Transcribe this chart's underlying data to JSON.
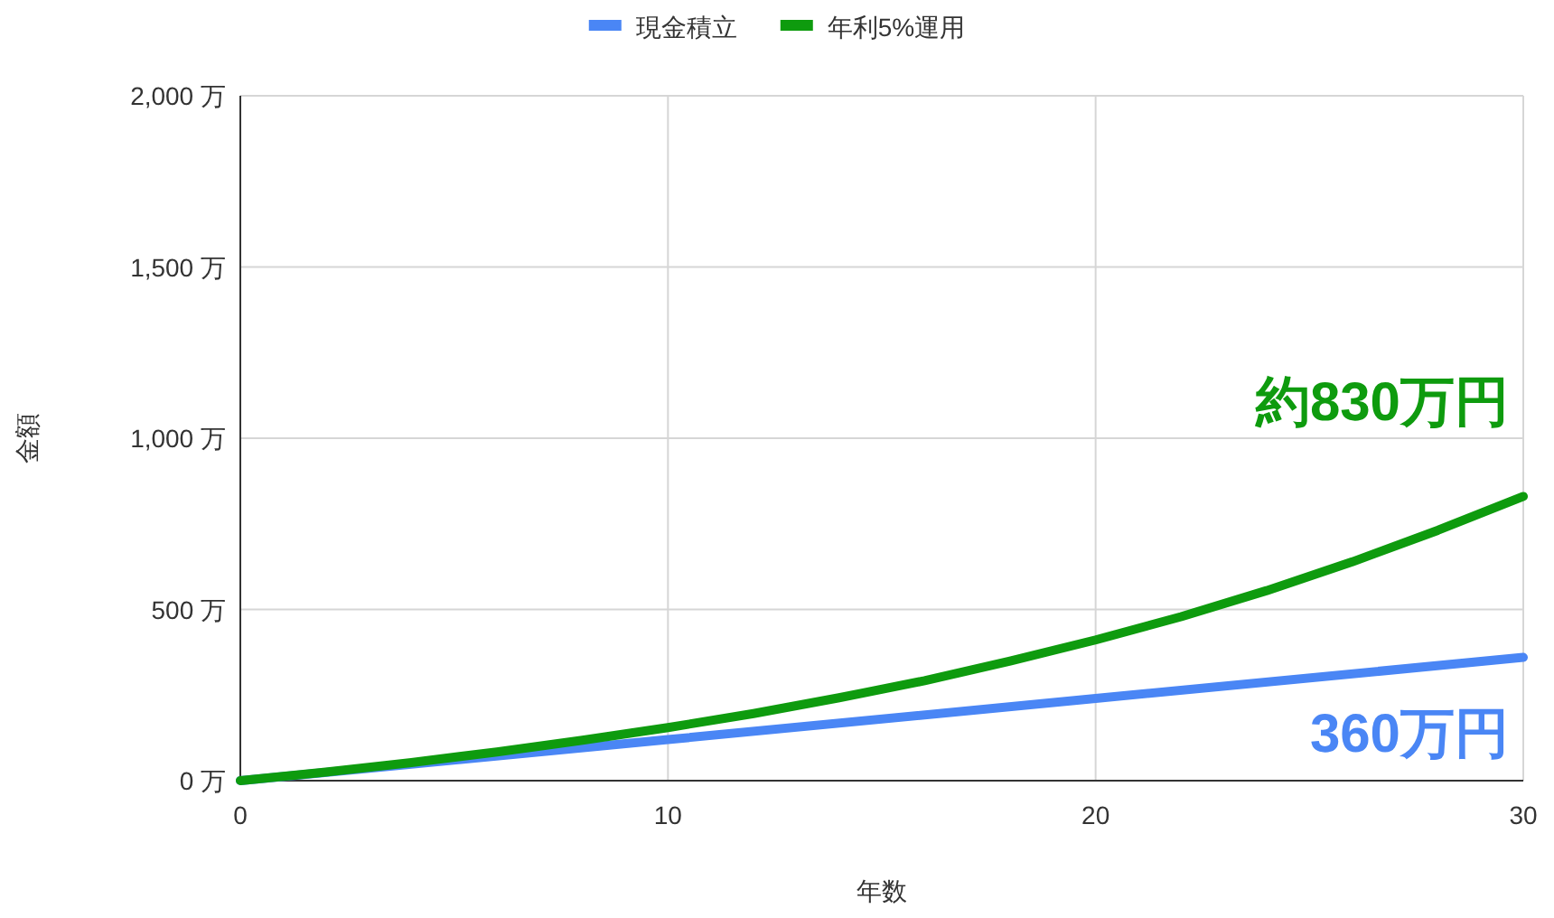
{
  "chart_data": {
    "type": "line",
    "xlabel": "年数",
    "ylabel": "金額",
    "xlim": [
      0,
      30
    ],
    "xticks": [
      0,
      10,
      20,
      30
    ],
    "ylim": [
      0,
      2000
    ],
    "yticks": [
      {
        "value": 0,
        "label": "0 万"
      },
      {
        "value": 500,
        "label": "500 万"
      },
      {
        "value": 1000,
        "label": "1,000 万"
      },
      {
        "value": 1500,
        "label": "1,500 万"
      },
      {
        "value": 2000,
        "label": "2,000 万"
      }
    ],
    "grid": true,
    "legend": "top",
    "marker": "none",
    "line_style": "solid",
    "series": [
      {
        "name": "現金積立",
        "color": "#4a86f5",
        "x": [
          0,
          10,
          20,
          30
        ],
        "values": [
          0,
          120,
          240,
          360
        ]
      },
      {
        "name": "年利5%運用",
        "color": "#0e9b0e",
        "x": [
          0,
          2,
          4,
          6,
          8,
          10,
          12,
          14,
          16,
          18,
          20,
          22,
          24,
          26,
          28,
          30
        ],
        "values": [
          0,
          25,
          53,
          84,
          118,
          155,
          196,
          242,
          292,
          349,
          411,
          479,
          555,
          639,
          731,
          830
        ]
      }
    ],
    "annotations": [
      {
        "text": "約830万円",
        "x": 30,
        "y": 830
      },
      {
        "text": "360万円",
        "x": 30,
        "y": 360
      }
    ]
  }
}
